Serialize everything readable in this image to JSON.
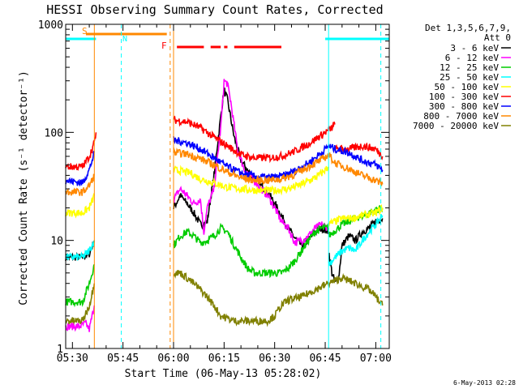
{
  "chart_data": {
    "type": "line",
    "title": "HESSI Observing Summary Count Rates, Corrected",
    "xlabel": "Start Time (06-May-13 05:28:02)",
    "ylabel": "Corrected Count Rate (s⁻¹ detector⁻¹)",
    "x_tick_labels": [
      "05:30",
      "05:45",
      "06:00",
      "06:15",
      "06:30",
      "06:45",
      "07:00"
    ],
    "x_tick_minutes": [
      330,
      345,
      360,
      375,
      390,
      405,
      420
    ],
    "xlim_minutes": [
      328,
      424
    ],
    "y_scale": "log",
    "ylim": [
      1,
      1000
    ],
    "y_tick_labels": [
      "1",
      "10",
      "100",
      "1000"
    ],
    "y_tick_values": [
      1,
      10,
      100,
      1000
    ],
    "legend_title": [
      "Det 1,3,5,6,7,9,",
      "Att 0"
    ],
    "legend_placement": "right",
    "footer_date": "6-May-2013 02:28",
    "flag_labels": {
      "saa": "S",
      "night": "N",
      "flare": "F"
    },
    "series": [
      {
        "name": "3 - 6 keV",
        "color": "#000000",
        "segments": [
          [
            [
              328,
              7
            ],
            [
              333,
              7
            ],
            [
              335,
              7.5
            ],
            [
              336.5,
              10
            ]
          ],
          [
            [
              360,
              20
            ],
            [
              362,
              26
            ],
            [
              364,
              22
            ],
            [
              366,
              18
            ],
            [
              368,
              14
            ],
            [
              370,
              15
            ],
            [
              372,
              40
            ],
            [
              374,
              140
            ],
            [
              375,
              250
            ],
            [
              376,
              200
            ],
            [
              378,
              90
            ],
            [
              380,
              55
            ],
            [
              383,
              40
            ],
            [
              386,
              32
            ],
            [
              388,
              28
            ],
            [
              390,
              22
            ],
            [
              392,
              17
            ],
            [
              394,
              13
            ],
            [
              396,
              10.5
            ],
            [
              398,
              9
            ],
            [
              400,
              10
            ],
            [
              402,
              12
            ],
            [
              404,
              13
            ],
            [
              406,
              12
            ]
          ],
          [
            [
              406,
              8
            ],
            [
              407,
              5
            ],
            [
              408,
              4
            ],
            [
              409,
              4.5
            ],
            [
              410,
              9
            ],
            [
              412,
              11
            ],
            [
              414,
              10
            ],
            [
              416,
              12
            ],
            [
              418,
              13
            ],
            [
              420,
              15
            ],
            [
              422,
              16
            ]
          ]
        ]
      },
      {
        "name": "6 - 12 keV",
        "color": "#ff00ff",
        "segments": [
          [
            [
              328,
              1.6
            ],
            [
              332,
              1.6
            ],
            [
              334,
              1.7
            ],
            [
              335,
              1.5
            ],
            [
              336.5,
              2.5
            ]
          ],
          [
            [
              360,
              24
            ],
            [
              362,
              30
            ],
            [
              364,
              26
            ],
            [
              366,
              22
            ],
            [
              368,
              24
            ],
            [
              369,
              12
            ],
            [
              370,
              20
            ],
            [
              372,
              30
            ],
            [
              374,
              110
            ],
            [
              375,
              300
            ],
            [
              376,
              280
            ],
            [
              377,
              190
            ],
            [
              379,
              70
            ],
            [
              381,
              45
            ],
            [
              384,
              36
            ],
            [
              386,
              30
            ],
            [
              388,
              26
            ],
            [
              390,
              20
            ],
            [
              392,
              15
            ],
            [
              394,
              13
            ],
            [
              396,
              9.5
            ],
            [
              398,
              10
            ],
            [
              400,
              11
            ],
            [
              402,
              13
            ],
            [
              404,
              14
            ],
            [
              406,
              13
            ]
          ]
        ]
      },
      {
        "name": "12 - 25 keV",
        "color": "#00cc00",
        "segments": [
          [
            [
              328,
              2.7
            ],
            [
              333,
              2.7
            ],
            [
              335,
              4
            ],
            [
              336.5,
              6
            ]
          ],
          [
            [
              360,
              9
            ],
            [
              362,
              11
            ],
            [
              364,
              12
            ],
            [
              366,
              11
            ],
            [
              368,
              9.5
            ],
            [
              370,
              10
            ],
            [
              372,
              11
            ],
            [
              374,
              13
            ],
            [
              376,
              12
            ],
            [
              378,
              9
            ],
            [
              380,
              7
            ],
            [
              382,
              5.5
            ],
            [
              384,
              5
            ],
            [
              388,
              5
            ],
            [
              392,
              5
            ],
            [
              394,
              5.5
            ],
            [
              396,
              6.5
            ],
            [
              398,
              8
            ],
            [
              400,
              10
            ],
            [
              402,
              12
            ],
            [
              404,
              13
            ],
            [
              406,
              13
            ]
          ],
          [
            [
              406,
              11
            ],
            [
              410,
              14
            ],
            [
              414,
              16
            ],
            [
              418,
              18
            ],
            [
              422,
              20
            ]
          ]
        ]
      },
      {
        "name": "25 - 50 keV",
        "color": "#00ffff",
        "segments": [
          [
            [
              328,
              7
            ],
            [
              333,
              7
            ],
            [
              335,
              8
            ],
            [
              336.5,
              10
            ]
          ],
          [
            [
              406,
              6
            ],
            [
              408,
              7
            ],
            [
              410,
              8
            ],
            [
              412,
              8.5
            ],
            [
              414,
              8
            ],
            [
              416,
              10
            ],
            [
              418,
              12
            ],
            [
              420,
              14
            ],
            [
              422,
              17
            ]
          ]
        ]
      },
      {
        "name": "50 - 100 keV",
        "color": "#ffff00",
        "segments": [
          [
            [
              328,
              18
            ],
            [
              333,
              18
            ],
            [
              335,
              20
            ],
            [
              336.5,
              26
            ]
          ],
          [
            [
              360,
              45
            ],
            [
              362,
              44
            ],
            [
              365,
              42
            ],
            [
              368,
              37
            ],
            [
              372,
              34
            ],
            [
              376,
              31
            ],
            [
              380,
              30
            ],
            [
              385,
              29
            ],
            [
              390,
              29
            ],
            [
              394,
              30
            ],
            [
              398,
              33
            ],
            [
              402,
              38
            ],
            [
              404,
              42
            ],
            [
              406,
              48
            ]
          ],
          [
            [
              406,
              14
            ],
            [
              408,
              15
            ],
            [
              410,
              16
            ],
            [
              413,
              16
            ],
            [
              416,
              17
            ],
            [
              420,
              18
            ],
            [
              422,
              20
            ]
          ]
        ]
      },
      {
        "name": "100 - 300 keV",
        "color": "#ff0000",
        "segments": [
          [
            [
              328,
              48
            ],
            [
              333,
              48
            ],
            [
              335,
              60
            ],
            [
              336.5,
              80
            ],
            [
              337,
              100
            ]
          ],
          [
            [
              360,
              130
            ],
            [
              364,
              125
            ],
            [
              368,
              110
            ],
            [
              372,
              90
            ],
            [
              376,
              75
            ],
            [
              380,
              62
            ],
            [
              384,
              58
            ],
            [
              388,
              58
            ],
            [
              392,
              60
            ],
            [
              396,
              67
            ],
            [
              400,
              78
            ],
            [
              404,
              95
            ],
            [
              407,
              110
            ],
            [
              408,
              120
            ]
          ],
          [
            [
              408,
              70
            ],
            [
              412,
              70
            ],
            [
              416,
              75
            ],
            [
              420,
              70
            ],
            [
              422,
              60
            ]
          ]
        ]
      },
      {
        "name": "300 - 800 keV",
        "color": "#0000ff",
        "segments": [
          [
            [
              328,
              36
            ],
            [
              333,
              34
            ],
            [
              335,
              45
            ],
            [
              336.5,
              65
            ]
          ],
          [
            [
              360,
              85
            ],
            [
              364,
              80
            ],
            [
              368,
              70
            ],
            [
              372,
              58
            ],
            [
              376,
              48
            ],
            [
              380,
              42
            ],
            [
              384,
              39
            ],
            [
              388,
              38
            ],
            [
              392,
              39
            ],
            [
              396,
              44
            ],
            [
              400,
              52
            ],
            [
              404,
              65
            ],
            [
              406,
              75
            ],
            [
              408,
              70
            ],
            [
              412,
              65
            ],
            [
              416,
              55
            ],
            [
              420,
              50
            ],
            [
              422,
              45
            ]
          ]
        ]
      },
      {
        "name": "800 - 7000 keV",
        "color": "#ff8800",
        "segments": [
          [
            [
              328,
              28
            ],
            [
              333,
              28
            ],
            [
              335,
              32
            ],
            [
              336.5,
              40
            ]
          ],
          [
            [
              360,
              65
            ],
            [
              364,
              63
            ],
            [
              368,
              57
            ],
            [
              372,
              50
            ],
            [
              376,
              43
            ],
            [
              380,
              38
            ],
            [
              384,
              36
            ],
            [
              388,
              36
            ],
            [
              392,
              37
            ],
            [
              396,
              41
            ],
            [
              400,
              48
            ],
            [
              404,
              56
            ],
            [
              406,
              62
            ],
            [
              408,
              52
            ],
            [
              412,
              46
            ],
            [
              416,
              40
            ],
            [
              420,
              36
            ],
            [
              422,
              33
            ]
          ]
        ]
      },
      {
        "name": "7000 - 20000 keV",
        "color": "#808000",
        "segments": [
          [
            [
              328,
              1.8
            ],
            [
              333,
              1.8
            ],
            [
              335,
              2.5
            ],
            [
              336.5,
              4
            ]
          ],
          [
            [
              360,
              5
            ],
            [
              362,
              5
            ],
            [
              364,
              4.5
            ],
            [
              366,
              4
            ],
            [
              368,
              3.5
            ],
            [
              370,
              3
            ],
            [
              372,
              2.5
            ],
            [
              374,
              2
            ],
            [
              378,
              1.8
            ],
            [
              384,
              1.8
            ],
            [
              388,
              1.8
            ],
            [
              390,
              2
            ],
            [
              392,
              2.5
            ],
            [
              394,
              2.8
            ],
            [
              398,
              3
            ],
            [
              402,
              3.5
            ],
            [
              406,
              4
            ],
            [
              410,
              4.5
            ],
            [
              414,
              4
            ],
            [
              418,
              3.5
            ],
            [
              420,
              3
            ],
            [
              422,
              2.5
            ]
          ]
        ]
      }
    ],
    "flag_bars": [
      {
        "label": "SAA",
        "color": "#ff8800",
        "ranges_minutes": [
          [
            334,
            358
          ]
        ]
      },
      {
        "label": "Night",
        "color": "#00ffff",
        "ranges_minutes": [
          [
            328,
            337
          ],
          [
            405,
            424
          ]
        ]
      },
      {
        "label": "Flare",
        "color": "#ff0000",
        "ranges_minutes": [
          [
            361,
            369
          ],
          [
            371,
            374
          ],
          [
            375,
            376
          ],
          [
            378,
            392
          ]
        ]
      }
    ],
    "vertical_markers": [
      {
        "minute": 336.5,
        "color": "#ff8800",
        "style": "solid"
      },
      {
        "minute": 344.5,
        "color": "#00ffff",
        "style": "dashed"
      },
      {
        "minute": 359,
        "color": "#ff8800",
        "style": "dashed"
      },
      {
        "minute": 360,
        "color": "#ff8800",
        "style": "solid"
      },
      {
        "minute": 406,
        "color": "#00ffff",
        "style": "solid"
      },
      {
        "minute": 421.5,
        "color": "#00ffff",
        "style": "dashed"
      }
    ]
  }
}
